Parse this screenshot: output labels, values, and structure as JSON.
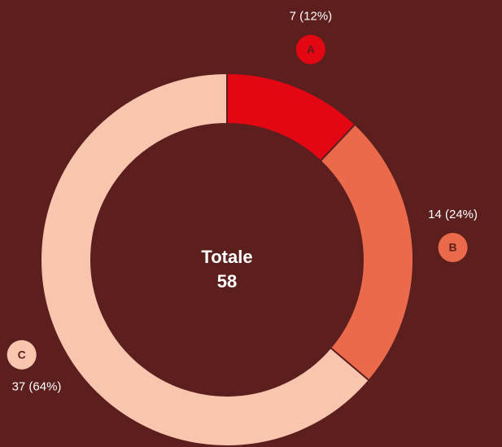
{
  "chart_data": {
    "type": "pie",
    "donut": true,
    "categories": [
      "A",
      "B",
      "C"
    ],
    "values": [
      7,
      14,
      37
    ],
    "value_labels": [
      "7 (12%)",
      "14 (24%)",
      "37 (64%)"
    ],
    "colors": [
      "#e30613",
      "#ec6a4c",
      "#f8c6ae"
    ],
    "center_label": "Totale",
    "total": 58
  }
}
